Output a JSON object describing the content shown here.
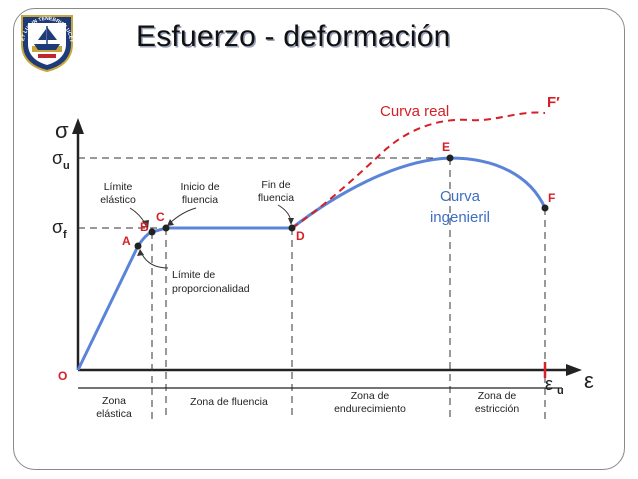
{
  "slide": {
    "title": "Esfuerzo - deformación",
    "seal_text": "ET LUX IN TENEBRIS LUCET"
  },
  "diagram": {
    "axis_y_symbol": "σ",
    "axis_x_symbol": "ε",
    "sigma_u": "σ",
    "sigma_u_sub": "u",
    "sigma_f": "σ",
    "sigma_f_sub": "f",
    "epsilon_u": "ε",
    "epsilon_u_sub": "u",
    "origin": "O",
    "points": {
      "A": "A",
      "B": "B",
      "C": "C",
      "D": "D",
      "E": "E",
      "F": "F",
      "F_prime": "F′"
    },
    "annotations": {
      "limite_elastico": [
        "Límite",
        "elástico"
      ],
      "inicio_fluencia": [
        "Inicio de",
        "fluencia"
      ],
      "fin_fluencia": [
        "Fin de",
        "fluencia"
      ],
      "limite_proporcionalidad": [
        "Límite de",
        "proporcionalidad"
      ]
    },
    "curva_real": "Curva real",
    "curva_ingenieril": [
      "Curva",
      "ingenieril"
    ],
    "zones": {
      "elastica": [
        "Zona",
        "elástica"
      ],
      "fluencia": "Zona de fluencia",
      "endurecimiento": [
        "Zona de",
        "endurecimiento"
      ],
      "estriccion": [
        "Zona de",
        "estricción"
      ]
    },
    "colors": {
      "engineering_curve": "#5b84d9",
      "real_curve": "#d61f26",
      "curva_real_label": "#d61f26",
      "curva_ingenieril_label": "#3d6fc6",
      "point_label": "#d61f26",
      "axis": "#222222"
    }
  }
}
